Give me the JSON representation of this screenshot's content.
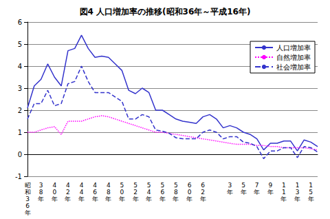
{
  "chart_data": {
    "type": "line",
    "title": "図4 人口増加率の推移(昭和36年～平成16年)",
    "categories": [
      "昭和36年",
      null,
      "38年",
      null,
      "40年",
      null,
      "42年",
      null,
      "44年",
      null,
      "46年",
      null,
      "48年",
      null,
      "50年",
      null,
      "52年",
      null,
      "54年",
      null,
      "56年",
      null,
      "58年",
      null,
      "60年",
      null,
      "62年",
      null,
      null,
      null,
      "3年",
      null,
      "5年",
      null,
      "7年",
      null,
      "9年",
      null,
      "11年",
      null,
      "13年",
      null,
      "15年",
      null
    ],
    "series": [
      {
        "name": "人口増加率",
        "color": "#3333cc",
        "line_style": "solid",
        "marker": "none",
        "values": [
          2.1,
          3.1,
          3.4,
          4.1,
          3.5,
          3.1,
          4.7,
          4.8,
          5.4,
          4.8,
          4.4,
          4.45,
          4.4,
          4.1,
          3.8,
          2.9,
          2.75,
          3.0,
          2.8,
          2.0,
          2.0,
          1.8,
          1.6,
          1.5,
          1.45,
          1.4,
          1.7,
          1.8,
          1.6,
          1.2,
          1.3,
          1.2,
          1.0,
          0.9,
          0.7,
          0.2,
          0.5,
          0.5,
          0.6,
          0.6,
          0.15,
          0.65,
          0.55,
          0.35
        ]
      },
      {
        "name": "自然増加率",
        "color": "#ff00ff",
        "line_style": "dotted",
        "marker": "none",
        "values": [
          1.0,
          1.0,
          1.1,
          1.2,
          1.25,
          0.9,
          1.5,
          1.5,
          1.5,
          1.6,
          1.7,
          1.75,
          1.7,
          1.6,
          1.5,
          1.4,
          1.3,
          1.2,
          1.1,
          1.0,
          1.0,
          0.95,
          0.9,
          0.85,
          0.8,
          0.75,
          0.7,
          0.65,
          0.6,
          0.55,
          0.5,
          0.45,
          0.45,
          0.45,
          0.4,
          0.4,
          0.35,
          0.35,
          0.3,
          0.3,
          0.3,
          0.3,
          0.25,
          0.2
        ]
      },
      {
        "name": "社会増加率",
        "color": "#3333cc",
        "line_style": "dashed",
        "marker": "none",
        "values": [
          1.6,
          2.3,
          2.3,
          2.9,
          2.2,
          2.3,
          3.2,
          3.3,
          4.0,
          3.3,
          2.8,
          2.8,
          2.8,
          2.6,
          2.4,
          1.6,
          1.6,
          1.8,
          1.7,
          1.1,
          1.05,
          0.95,
          0.75,
          0.7,
          0.7,
          0.7,
          1.0,
          1.1,
          1.0,
          0.7,
          0.8,
          0.8,
          0.55,
          0.5,
          0.35,
          -0.2,
          0.15,
          0.15,
          0.3,
          0.3,
          -0.15,
          0.35,
          0.3,
          0.1
        ]
      }
    ],
    "ylim": [
      -1,
      6
    ],
    "yticks": [
      -1,
      0,
      1,
      2,
      3,
      4,
      5,
      6
    ],
    "grid": true,
    "legend": "top-right"
  }
}
